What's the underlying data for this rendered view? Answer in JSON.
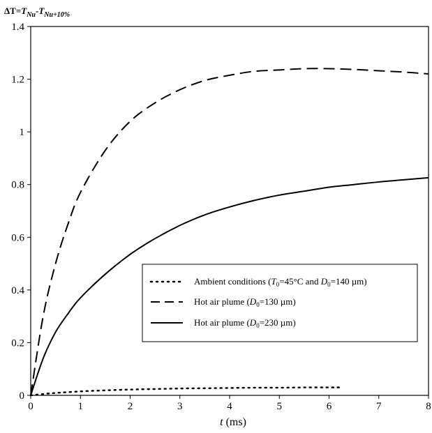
{
  "chart_data": {
    "type": "line",
    "title": "",
    "ylabel": {
      "delta": "ΔT",
      "eq": "=",
      "t1": "T",
      "sub1": "Nu",
      "minus": "-",
      "t2": "T",
      "sub2": "Nu+10%"
    },
    "xlabel": {
      "var": "t",
      "unit": " (ms)"
    },
    "xlim": [
      0,
      8
    ],
    "ylim": [
      0,
      1.4
    ],
    "x_ticks": [
      "0",
      "1",
      "2",
      "3",
      "4",
      "5",
      "6",
      "7",
      "8"
    ],
    "y_ticks": [
      "0",
      "0.2",
      "0.4",
      "0.6",
      "0.8",
      "1",
      "1.2",
      "1.4"
    ],
    "grid": false,
    "legend_position": "center-right",
    "series": [
      {
        "style": "dotted",
        "legend": {
          "main": "Ambient conditions  (",
          "T": "T",
          "Tsub": "0",
          "mid": "=45°C and ",
          "D": "D",
          "Dsub": "0",
          "end": "=140 µm)"
        },
        "x": [
          0,
          0.25,
          0.5,
          1,
          1.5,
          2,
          2.5,
          3,
          3.5,
          4,
          4.5,
          5,
          5.5,
          6,
          6.2
        ],
        "y": [
          0,
          0.005,
          0.009,
          0.015,
          0.019,
          0.022,
          0.024,
          0.026,
          0.027,
          0.028,
          0.029,
          0.029,
          0.03,
          0.03,
          0.03
        ]
      },
      {
        "style": "dashed",
        "legend": {
          "main": "Hot air plume (",
          "D": "D",
          "Dsub": "0",
          "end": "=130 µm)"
        },
        "x": [
          0,
          0.25,
          0.5,
          0.75,
          1,
          1.5,
          2,
          2.5,
          3,
          3.5,
          4,
          4.5,
          5,
          5.5,
          6,
          6.5,
          7,
          7.5,
          8
        ],
        "y": [
          0,
          0.3,
          0.5,
          0.65,
          0.77,
          0.93,
          1.04,
          1.11,
          1.16,
          1.195,
          1.215,
          1.23,
          1.235,
          1.24,
          1.24,
          1.237,
          1.232,
          1.227,
          1.22
        ]
      },
      {
        "style": "solid",
        "legend": {
          "main": "Hot air plume (",
          "D": "D",
          "Dsub": "0",
          "end": "=230 µm)"
        },
        "x": [
          0,
          0.25,
          0.5,
          0.75,
          1,
          1.5,
          2,
          2.5,
          3,
          3.5,
          4,
          4.5,
          5,
          5.5,
          6,
          6.5,
          7,
          7.5,
          8
        ],
        "y": [
          0,
          0.14,
          0.24,
          0.31,
          0.37,
          0.46,
          0.535,
          0.595,
          0.645,
          0.685,
          0.715,
          0.74,
          0.76,
          0.775,
          0.79,
          0.8,
          0.81,
          0.818,
          0.826
        ]
      }
    ]
  }
}
